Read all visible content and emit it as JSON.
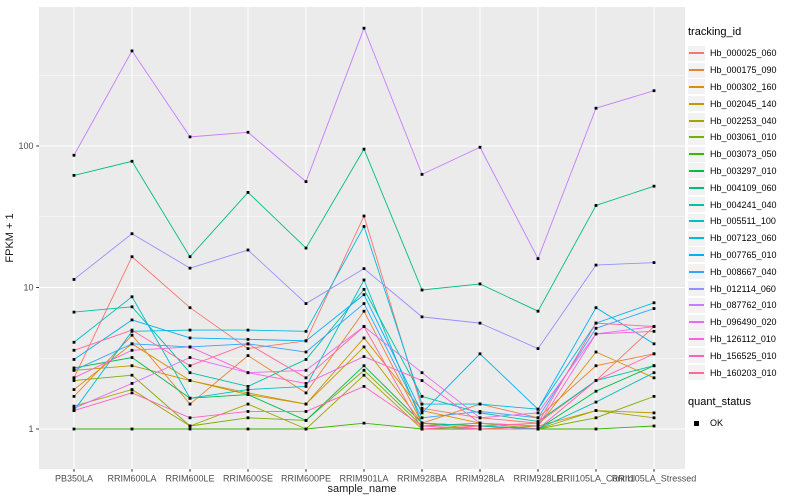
{
  "figure": {
    "bg": "#FFFFFF",
    "panel_bg": "#EBEBEB",
    "grid_color": "#FFFFFF",
    "tick_label_color": "#4D4D4D",
    "axis_title_color": "#1A1A1A",
    "tick_mark_color": "#333333",
    "point_color": "#000000",
    "legend_key_bg": "#F2F2F2"
  },
  "chart_data": {
    "type": "line",
    "title": "",
    "xlabel": "sample_name",
    "ylabel": "FPKM + 1",
    "y_scale": "log10",
    "y_ticks": [
      1,
      10,
      100
    ],
    "y_minor_ticks": [
      3.162,
      31.62,
      316.2
    ],
    "ylim": [
      0.52,
      960
    ],
    "grid": true,
    "legend_position": "right",
    "point_shape": "square",
    "categories": [
      "PB350LA",
      "RRIM600LA",
      "RRIM600LE",
      "RRIM600SE",
      "RRIM600PE",
      "RRIM901LA",
      "RRIM928BA",
      "RRIM928LA",
      "RRIM928LE",
      "RRII105LA_Control",
      "RRII105LA_Stressed"
    ],
    "series": [
      {
        "name": "Hb_000025_060",
        "color": "#F8766D",
        "values": [
          2.3,
          16.5,
          7.2,
          3.7,
          4.2,
          32,
          1.4,
          1.2,
          1.1,
          2.2,
          5.3
        ]
      },
      {
        "name": "Hb_000175_090",
        "color": "#EA8331",
        "values": [
          1.7,
          4.6,
          1.5,
          3.3,
          1.8,
          6.8,
          1.1,
          1.5,
          1.2,
          2.8,
          3.4
        ]
      },
      {
        "name": "Hb_000302_160",
        "color": "#D89000",
        "values": [
          1.9,
          4.0,
          2.2,
          1.8,
          1.5,
          4.4,
          1.35,
          1.1,
          1.05,
          3.5,
          2.3
        ]
      },
      {
        "name": "Hb_002045_140",
        "color": "#C09B00",
        "values": [
          2.6,
          2.8,
          2.2,
          1.75,
          1.5,
          3.8,
          1.1,
          1.0,
          1.05,
          1.35,
          1.3
        ]
      },
      {
        "name": "Hb_002253_040",
        "color": "#A3A500",
        "values": [
          1.45,
          1.9,
          1.05,
          1.5,
          1.0,
          2.4,
          1.0,
          1.0,
          1.0,
          1.35,
          1.2
        ]
      },
      {
        "name": "Hb_003061_010",
        "color": "#7CAE00",
        "values": [
          2.2,
          2.4,
          1.05,
          1.2,
          1.15,
          2.6,
          1.05,
          1.1,
          1.0,
          1.2,
          1.7
        ]
      },
      {
        "name": "Hb_003073_050",
        "color": "#39B600",
        "values": [
          1.0,
          1.0,
          1.0,
          1.0,
          1.0,
          1.1,
          1.0,
          1.0,
          1.0,
          1.0,
          1.05
        ]
      },
      {
        "name": "Hb_003297_010",
        "color": "#00BB4E",
        "values": [
          2.7,
          3.2,
          1.65,
          1.75,
          1.15,
          2.8,
          1.1,
          1.05,
          1.0,
          1.85,
          2.8
        ]
      },
      {
        "name": "Hb_004109_060",
        "color": "#00BF7D",
        "values": [
          62,
          78,
          16.5,
          47,
          19,
          95,
          9.6,
          10.6,
          6.8,
          38,
          52
        ]
      },
      {
        "name": "Hb_004241_040",
        "color": "#00C1A3",
        "values": [
          6.7,
          7.3,
          2.5,
          2.0,
          3.1,
          9.7,
          1.7,
          1.3,
          1.13,
          2.2,
          2.8
        ]
      },
      {
        "name": "Hb_005511_100",
        "color": "#00BFC4",
        "values": [
          4.1,
          8.6,
          1.65,
          1.9,
          2.0,
          11.3,
          1.1,
          1.05,
          1.0,
          1.55,
          2.5
        ]
      },
      {
        "name": "Hb_007123_060",
        "color": "#00BAE0",
        "values": [
          1.35,
          4.9,
          5.0,
          5.0,
          4.9,
          27,
          1.5,
          1.5,
          1.38,
          5.6,
          7.8
        ]
      },
      {
        "name": "Hb_007765_010",
        "color": "#00B0F6",
        "values": [
          3.1,
          5.9,
          4.4,
          4.3,
          4.2,
          8.9,
          1.3,
          3.4,
          1.38,
          7.2,
          4.0
        ]
      },
      {
        "name": "Hb_008667_040",
        "color": "#35A2FF",
        "values": [
          2.6,
          4.0,
          3.8,
          4.0,
          3.5,
          7.7,
          1.2,
          1.33,
          1.2,
          5.15,
          7.1
        ]
      },
      {
        "name": "Hb_012114_060",
        "color": "#9590FF",
        "values": [
          11.4,
          24,
          13.7,
          18.4,
          7.7,
          13.6,
          6.2,
          5.6,
          3.7,
          14.4,
          15
        ]
      },
      {
        "name": "Hb_087762_010",
        "color": "#C77CFF",
        "values": [
          86,
          470,
          116,
          125,
          56,
          680,
          63,
          98,
          16,
          185,
          246
        ]
      },
      {
        "name": "Hb_096490_020",
        "color": "#E76BF3",
        "values": [
          1.4,
          2.1,
          3.2,
          2.5,
          2.6,
          5.3,
          2.5,
          1.2,
          1.3,
          4.7,
          5.3
        ]
      },
      {
        "name": "Hb_126112_010",
        "color": "#FA62DB",
        "values": [
          2.3,
          3.6,
          3.8,
          2.5,
          2.1,
          3.25,
          2.2,
          1.1,
          1.05,
          4.7,
          4.9
        ]
      },
      {
        "name": "Hb_156525_010",
        "color": "#FF62BC",
        "values": [
          1.35,
          1.8,
          1.2,
          1.33,
          1.33,
          2.0,
          1.05,
          1.0,
          1.0,
          2.2,
          3.4
        ]
      },
      {
        "name": "Hb_160203_010",
        "color": "#FF6A98",
        "values": [
          3.6,
          5.0,
          2.8,
          4.0,
          2.3,
          5.3,
          1.0,
          1.05,
          1.1,
          5.6,
          5.3
        ]
      }
    ],
    "legends": {
      "tracking_id": {
        "title": "tracking_id"
      },
      "quant_status": {
        "title": "quant_status",
        "entries": [
          {
            "label": "OK",
            "shape": "square",
            "color": "#000000"
          }
        ]
      }
    }
  }
}
